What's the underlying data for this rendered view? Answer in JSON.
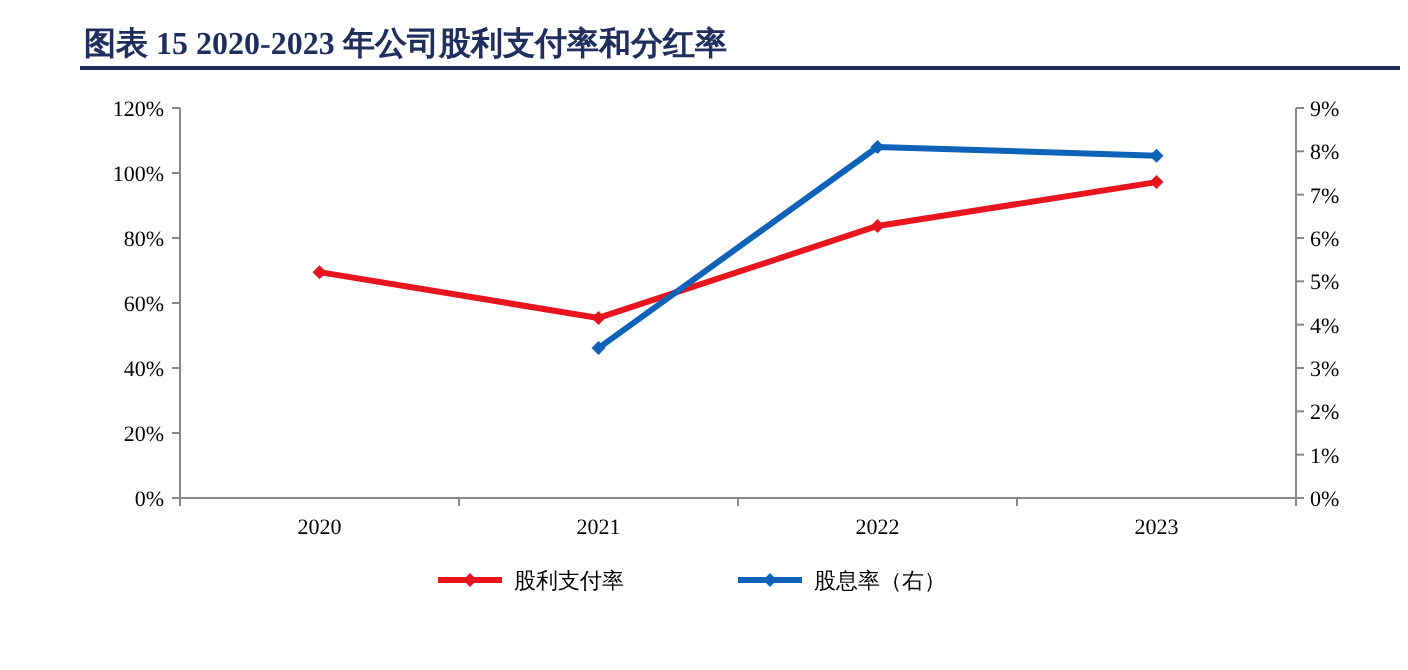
{
  "chart_data": {
    "type": "line",
    "title": "图表 15  2020-2023 年公司股利支付率和分红率",
    "categories": [
      "2020",
      "2021",
      "2022",
      "2023"
    ],
    "series": [
      {
        "name": "股利支付率",
        "color": "#e8141e",
        "values": [
          69.5,
          55.4,
          83.7,
          97.2
        ]
      },
      {
        "name": "股息率（右）",
        "color": "#0e63b8",
        "axis": "y2",
        "values": [
          null,
          3.46,
          8.1,
          7.9
        ]
      }
    ],
    "ylim": [
      0,
      120
    ],
    "yticks": [
      {
        "value": 0,
        "label": "0%"
      },
      {
        "value": 20,
        "label": "20%"
      },
      {
        "value": 40,
        "label": "40%"
      },
      {
        "value": 60,
        "label": "60%"
      },
      {
        "value": 80,
        "label": "80%"
      },
      {
        "value": 100,
        "label": "100%"
      },
      {
        "value": 120,
        "label": "120%"
      }
    ],
    "y2lim": [
      0,
      9
    ],
    "y2ticks": [
      {
        "value": 0,
        "label": "0%"
      },
      {
        "value": 1,
        "label": "1%"
      },
      {
        "value": 2,
        "label": "2%"
      },
      {
        "value": 3,
        "label": "3%"
      },
      {
        "value": 4,
        "label": "4%"
      },
      {
        "value": 5,
        "label": "5%"
      },
      {
        "value": 6,
        "label": "6%"
      },
      {
        "value": 7,
        "label": "7%"
      },
      {
        "value": 8,
        "label": "8%"
      },
      {
        "value": 9,
        "label": "9%"
      }
    ],
    "grid": false,
    "legend": "bottom",
    "marker": "diamond",
    "line_style": "solid"
  }
}
